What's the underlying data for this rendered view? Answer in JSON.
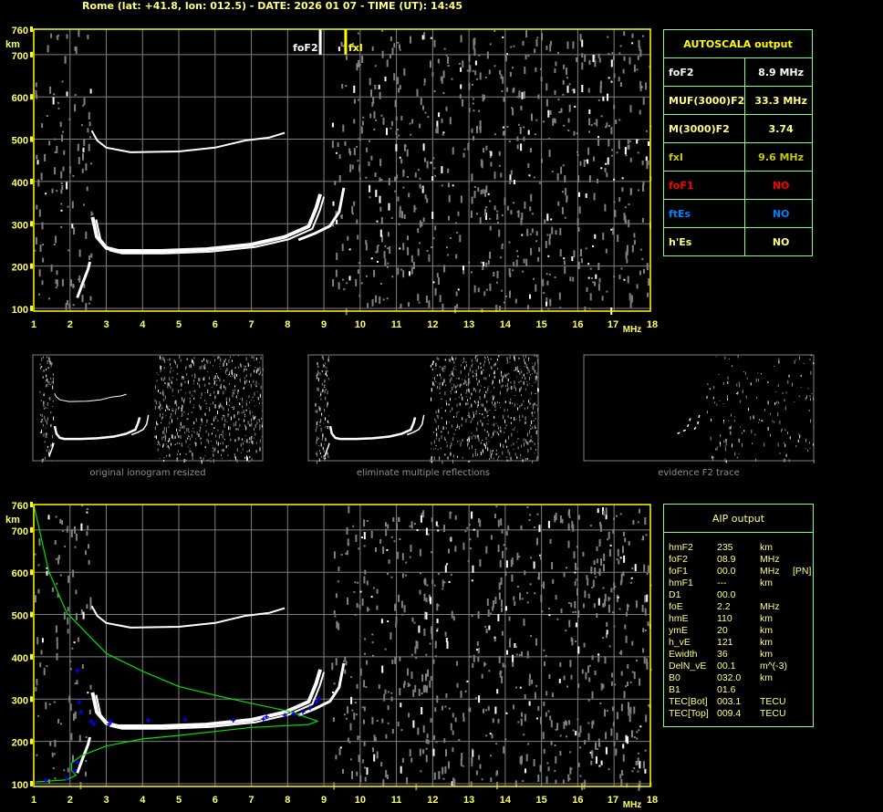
{
  "header": {
    "title": "Rome (lat: +41.8, lon: 012.5) - DATE: 2026 01 07 - TIME (UT): 14:45"
  },
  "chart_data": [
    {
      "type": "scatter",
      "title": "",
      "xlabel": "MHz",
      "ylabel": "km",
      "xlim": [
        1,
        18
      ],
      "ylim": [
        100,
        760
      ],
      "x_ticks": [
        "1",
        "2",
        "3",
        "4",
        "5",
        "6",
        "7",
        "8",
        "9",
        "10",
        "11",
        "12",
        "13",
        "14",
        "15",
        "16",
        "17",
        "18"
      ],
      "y_ticks": [
        "760",
        "700",
        "600",
        "500",
        "400",
        "300",
        "200",
        "100"
      ],
      "grid": true,
      "markers": [
        {
          "label": "foF2",
          "freq": 8.9,
          "color": "#ffffff"
        },
        {
          "label": "fxI",
          "freq": 9.6,
          "color": "#ffff00"
        }
      ],
      "traces": {
        "o_mode": [
          [
            2.62,
            316
          ],
          [
            2.74,
            269
          ],
          [
            3.0,
            243
          ],
          [
            3.33,
            236
          ],
          [
            4.5,
            236
          ],
          [
            5.75,
            240
          ],
          [
            7.0,
            251
          ],
          [
            7.92,
            269
          ],
          [
            8.58,
            294
          ],
          [
            8.79,
            338
          ],
          [
            8.9,
            370
          ]
        ],
        "x_mode": [
          [
            8.3,
            262
          ],
          [
            8.75,
            277
          ],
          [
            9.17,
            295
          ],
          [
            9.42,
            328
          ],
          [
            9.55,
            385
          ]
        ],
        "second_hop": [
          [
            2.6,
            520
          ],
          [
            2.75,
            497
          ],
          [
            3.0,
            480
          ],
          [
            3.67,
            469
          ],
          [
            5.0,
            471
          ],
          [
            6.0,
            480
          ],
          [
            6.83,
            497
          ],
          [
            7.5,
            504
          ],
          [
            7.92,
            515
          ]
        ],
        "low_layer": [
          [
            2.2,
            125
          ],
          [
            2.35,
            160
          ],
          [
            2.5,
            193
          ],
          [
            2.55,
            210
          ]
        ]
      }
    },
    {
      "type": "line",
      "title": "",
      "xlabel": "MHz",
      "ylabel": "km",
      "xlim": [
        1,
        18
      ],
      "ylim": [
        100,
        760
      ],
      "x_ticks": [
        "1",
        "2",
        "3",
        "4",
        "5",
        "6",
        "7",
        "8",
        "9",
        "10",
        "11",
        "12",
        "13",
        "14",
        "15",
        "16",
        "17",
        "18"
      ],
      "y_ticks": [
        "760",
        "700",
        "600",
        "500",
        "400",
        "300",
        "200",
        "100"
      ],
      "grid": true,
      "series": [
        {
          "role": "profile",
          "color": "#00e000",
          "points": [
            [
              1.0,
              760
            ],
            [
              1.41,
              603
            ],
            [
              1.91,
              504
            ],
            [
              3.0,
              408
            ],
            [
              4.0,
              366
            ],
            [
              5.0,
              330
            ],
            [
              6.0,
              309
            ],
            [
              7.0,
              290
            ],
            [
              8.0,
              272
            ],
            [
              8.83,
              248
            ],
            [
              8.58,
              240
            ],
            [
              7.0,
              233
            ],
            [
              5.0,
              214
            ],
            [
              4.0,
              206
            ],
            [
              3.0,
              189
            ],
            [
              2.33,
              167
            ],
            [
              2.04,
              149
            ],
            [
              2.04,
              131
            ],
            [
              2.17,
              120
            ],
            [
              1.9,
              109
            ],
            [
              1.0,
              104
            ]
          ]
        },
        {
          "role": "fitted-trace",
          "color": "#0000ff",
          "points": [
            [
              1.0,
              104
            ],
            [
              1.33,
              108
            ],
            [
              1.91,
              113
            ],
            [
              2.12,
              131
            ],
            [
              2.2,
              150
            ],
            [
              2.25,
              293
            ],
            [
              2.3,
              269
            ],
            [
              2.58,
              247
            ],
            [
              2.67,
              241
            ],
            [
              3.08,
              241
            ],
            [
              3.13,
              247
            ],
            [
              4.16,
              250
            ],
            [
              5.17,
              252
            ],
            [
              6.5,
              250
            ],
            [
              7.33,
              253
            ],
            [
              7.42,
              258
            ],
            [
              7.92,
              262
            ],
            [
              8.17,
              265
            ],
            [
              8.42,
              270
            ],
            [
              8.62,
              279
            ],
            [
              8.79,
              293
            ],
            [
              8.87,
              301
            ]
          ]
        },
        {
          "role": "fitted-outlier",
          "color": "#0000ff",
          "points": [
            [
              2.2,
              367
            ]
          ]
        }
      ]
    }
  ],
  "thumbnails": [
    {
      "caption": "original ionogram resized"
    },
    {
      "caption": "eliminate multiple reflections"
    },
    {
      "caption": "evidence F2 trace"
    }
  ],
  "autoscala": {
    "title": "AUTOSCALA output",
    "rows": [
      {
        "label": "foF2",
        "value": "8.9 MHz",
        "color": "#ffffff"
      },
      {
        "label": "MUF(3000)F2",
        "value": "33.3 MHz",
        "color": "#ffff80"
      },
      {
        "label": "M(3000)F2",
        "value": "3.74",
        "color": "#ffff80"
      },
      {
        "label": "fxI",
        "value": "9.6 MHz",
        "color": "#c8c800"
      },
      {
        "label": "foF1",
        "value": "NO",
        "color": "#ff0000"
      },
      {
        "label": "ftEs",
        "value": "NO",
        "color": "#0080ff"
      },
      {
        "label": "h'Es",
        "value": "NO",
        "color": "#ffff80"
      }
    ]
  },
  "aip": {
    "title": "AIP output",
    "rows": [
      {
        "name": "hmF2",
        "value": "235",
        "unit": "km",
        "flag": ""
      },
      {
        "name": "foF2",
        "value": "08.9",
        "unit": "MHz",
        "flag": ""
      },
      {
        "name": "foF1",
        "value": "00.0",
        "unit": "MHz",
        "flag": "[PN]"
      },
      {
        "name": "hmF1",
        "value": "---",
        "unit": "km",
        "flag": ""
      },
      {
        "name": "D1",
        "value": "00.0",
        "unit": "",
        "flag": ""
      },
      {
        "name": "foE",
        "value": "2.2",
        "unit": "MHz",
        "flag": ""
      },
      {
        "name": "hmE",
        "value": "110",
        "unit": "km",
        "flag": ""
      },
      {
        "name": "ymE",
        "value": "20",
        "unit": "km",
        "flag": ""
      },
      {
        "name": "h_vE",
        "value": "121",
        "unit": "km",
        "flag": ""
      },
      {
        "name": "Ewidth",
        "value": "36",
        "unit": "km",
        "flag": ""
      },
      {
        "name": "DelN_vE",
        "value": "00.1",
        "unit": "m^(-3)",
        "flag": ""
      },
      {
        "name": "B0",
        "value": "032.0",
        "unit": "km",
        "flag": ""
      },
      {
        "name": "B1",
        "value": "01.6",
        "unit": "",
        "flag": ""
      },
      {
        "name": "TEC[Bot]",
        "value": "003.1",
        "unit": "TECU",
        "flag": ""
      },
      {
        "name": "TEC[Top]",
        "value": "009.4",
        "unit": "TECU",
        "flag": ""
      }
    ]
  },
  "colors": {
    "axis": "#ffff00",
    "grid": "#808080",
    "panel_border": "#80ff80",
    "trace": "#ffffff",
    "noise": "#808080"
  }
}
